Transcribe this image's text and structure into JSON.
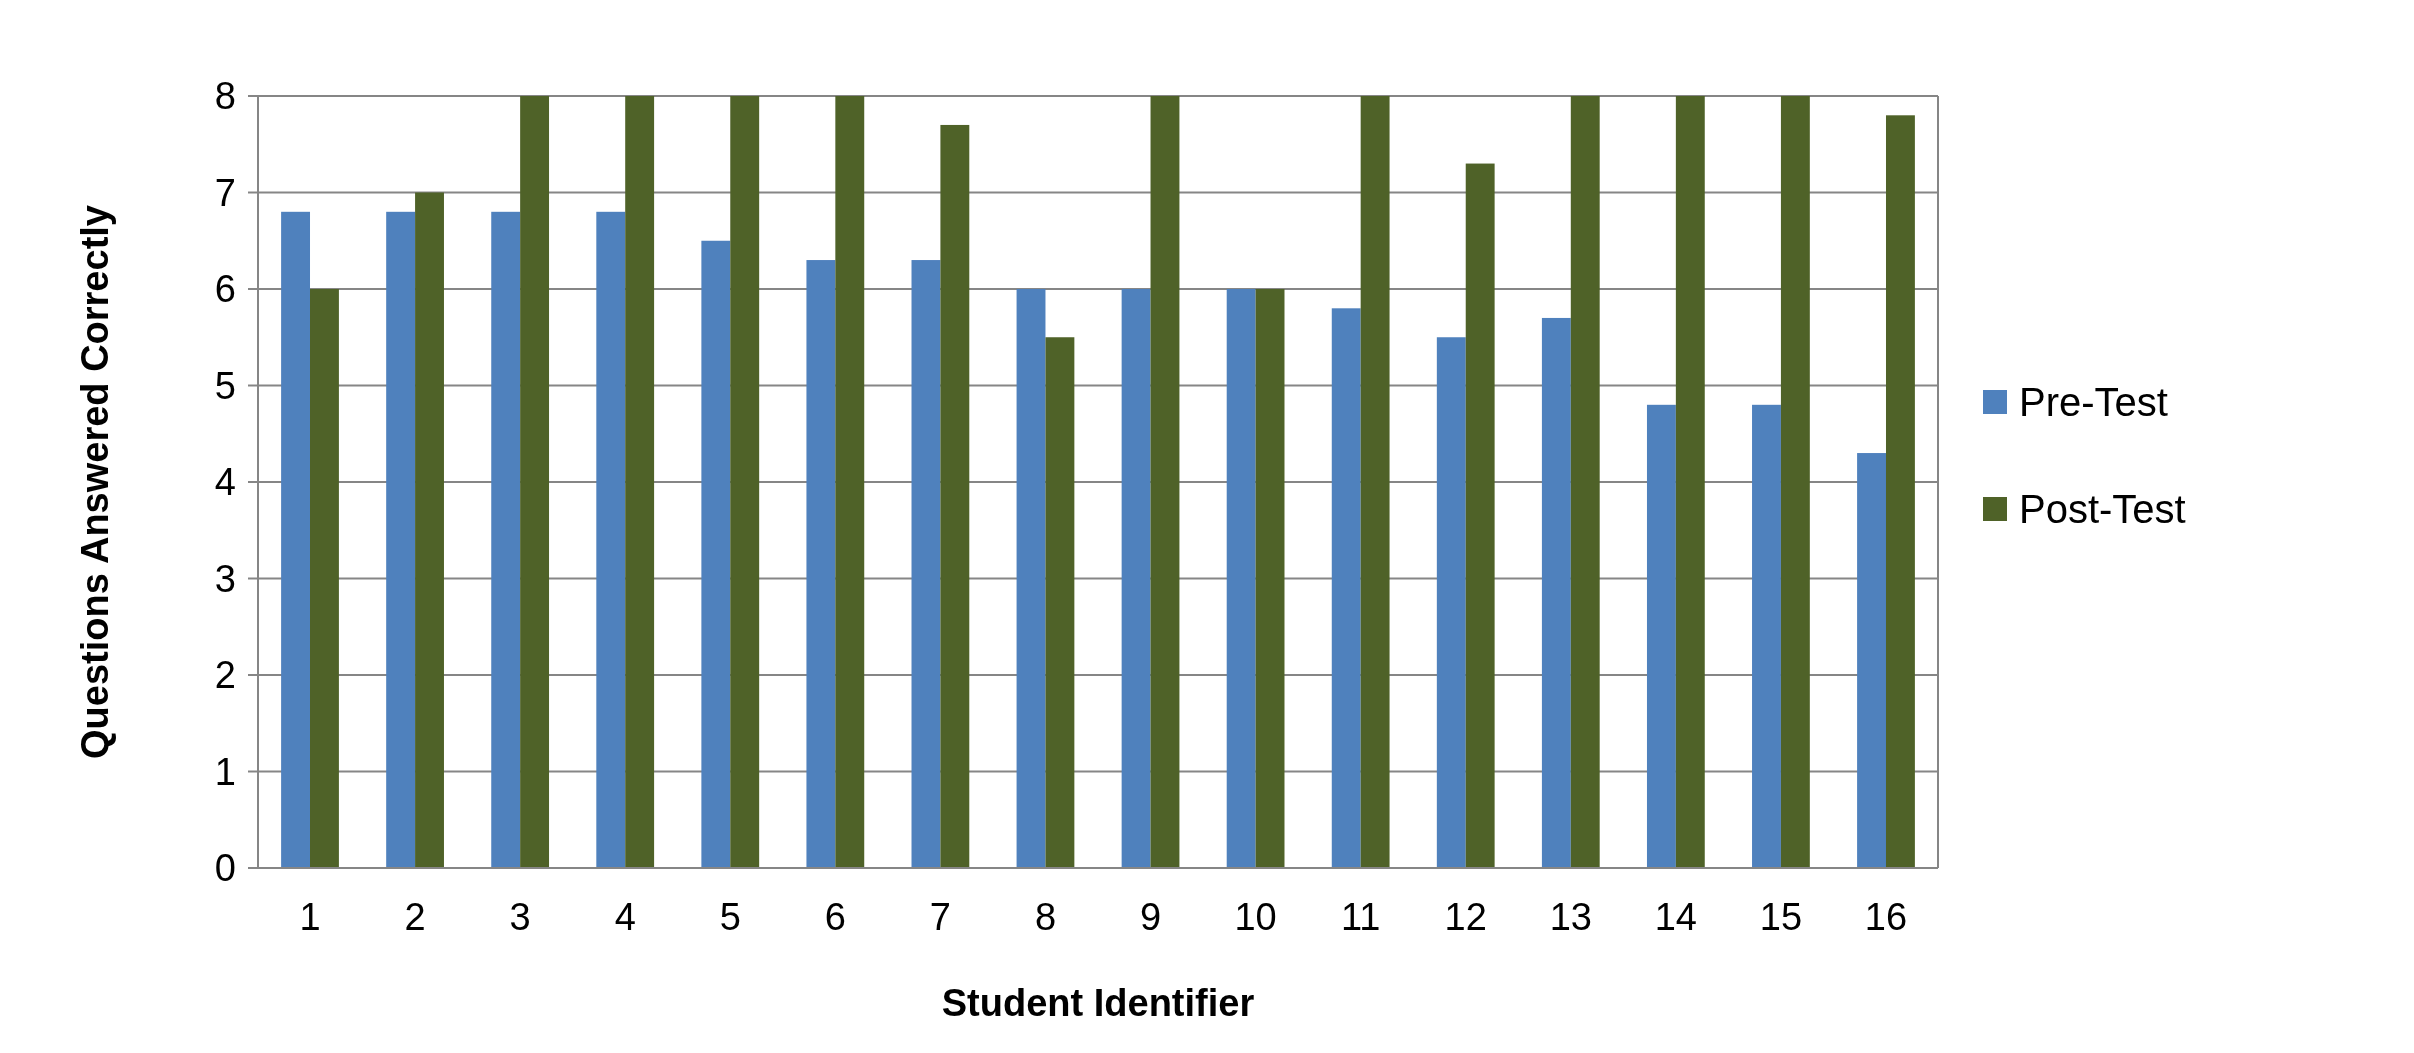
{
  "chart_data": {
    "type": "bar",
    "xlabel": "Student Identifier",
    "ylabel": "Questions Answered Correctly",
    "categories": [
      "1",
      "2",
      "3",
      "4",
      "5",
      "6",
      "7",
      "8",
      "9",
      "10",
      "11",
      "12",
      "13",
      "14",
      "15",
      "16"
    ],
    "series": [
      {
        "name": "Pre-Test",
        "color": "#4f81bd",
        "values": [
          6.8,
          6.8,
          6.8,
          6.8,
          6.5,
          6.3,
          6.3,
          6,
          6,
          6,
          5.8,
          5.5,
          5.7,
          4.8,
          4.8,
          4.3
        ]
      },
      {
        "name": "Post-Test",
        "color": "#4f6228",
        "values": [
          6,
          7,
          8,
          8,
          8,
          8,
          7.7,
          5.5,
          8,
          6,
          8,
          7.3,
          8,
          8,
          8,
          7.8
        ]
      }
    ],
    "ylim": [
      0,
      8
    ],
    "yticks": [
      0,
      1,
      2,
      3,
      4,
      5,
      6,
      7,
      8
    ],
    "grid": "y",
    "legend": "right"
  }
}
